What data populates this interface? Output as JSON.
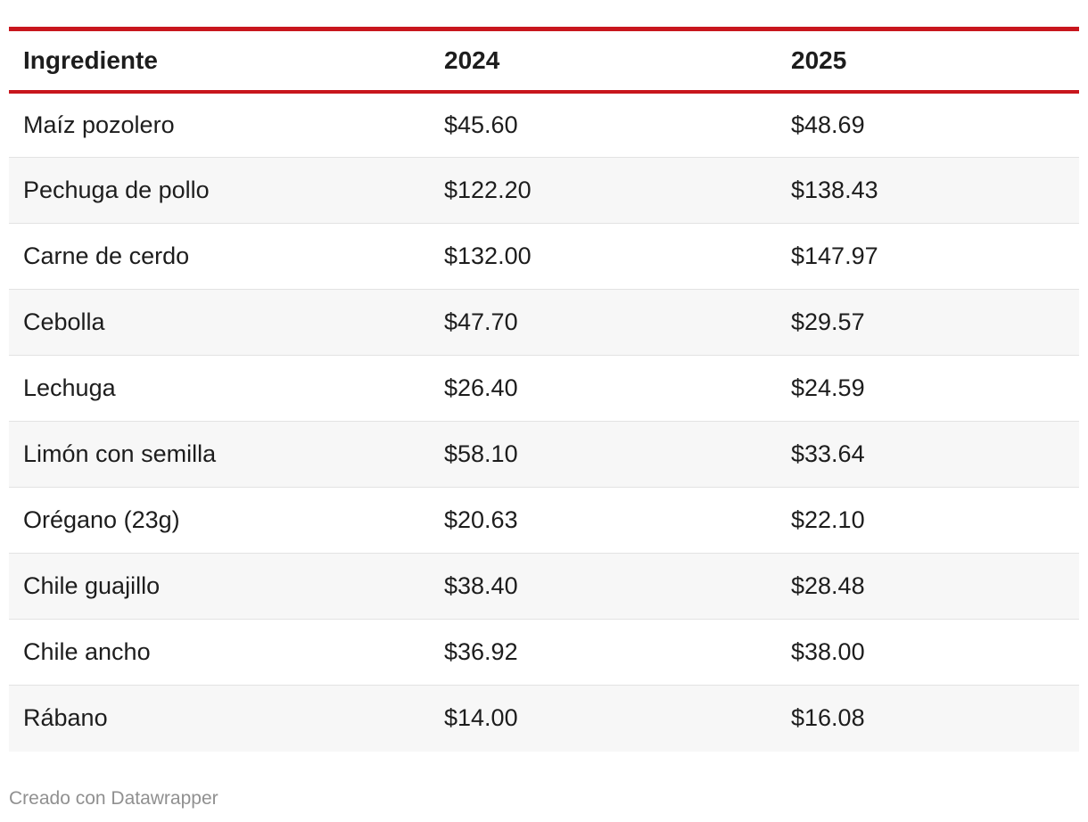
{
  "chart_data": {
    "type": "table",
    "columns": [
      "Ingrediente",
      "2024",
      "2025"
    ],
    "rows": [
      [
        "Maíz pozolero",
        "$45.60",
        "$48.69"
      ],
      [
        "Pechuga de pollo",
        "$122.20",
        "$138.43"
      ],
      [
        "Carne de cerdo",
        "$132.00",
        "$147.97"
      ],
      [
        "Cebolla",
        "$47.70",
        "$29.57"
      ],
      [
        "Lechuga",
        "$26.40",
        "$24.59"
      ],
      [
        "Limón con semilla",
        "$58.10",
        "$33.64"
      ],
      [
        "Orégano (23g)",
        "$20.63",
        "$22.10"
      ],
      [
        "Chile guajillo",
        "$38.40",
        "$28.48"
      ],
      [
        "Chile ancho",
        "$36.92",
        "$38.00"
      ],
      [
        "Rábano",
        "$14.00",
        "$16.08"
      ]
    ],
    "accent_color": "#c8161d",
    "stripe_color": "#f7f7f7"
  },
  "footer": {
    "credit": "Creado con Datawrapper"
  }
}
